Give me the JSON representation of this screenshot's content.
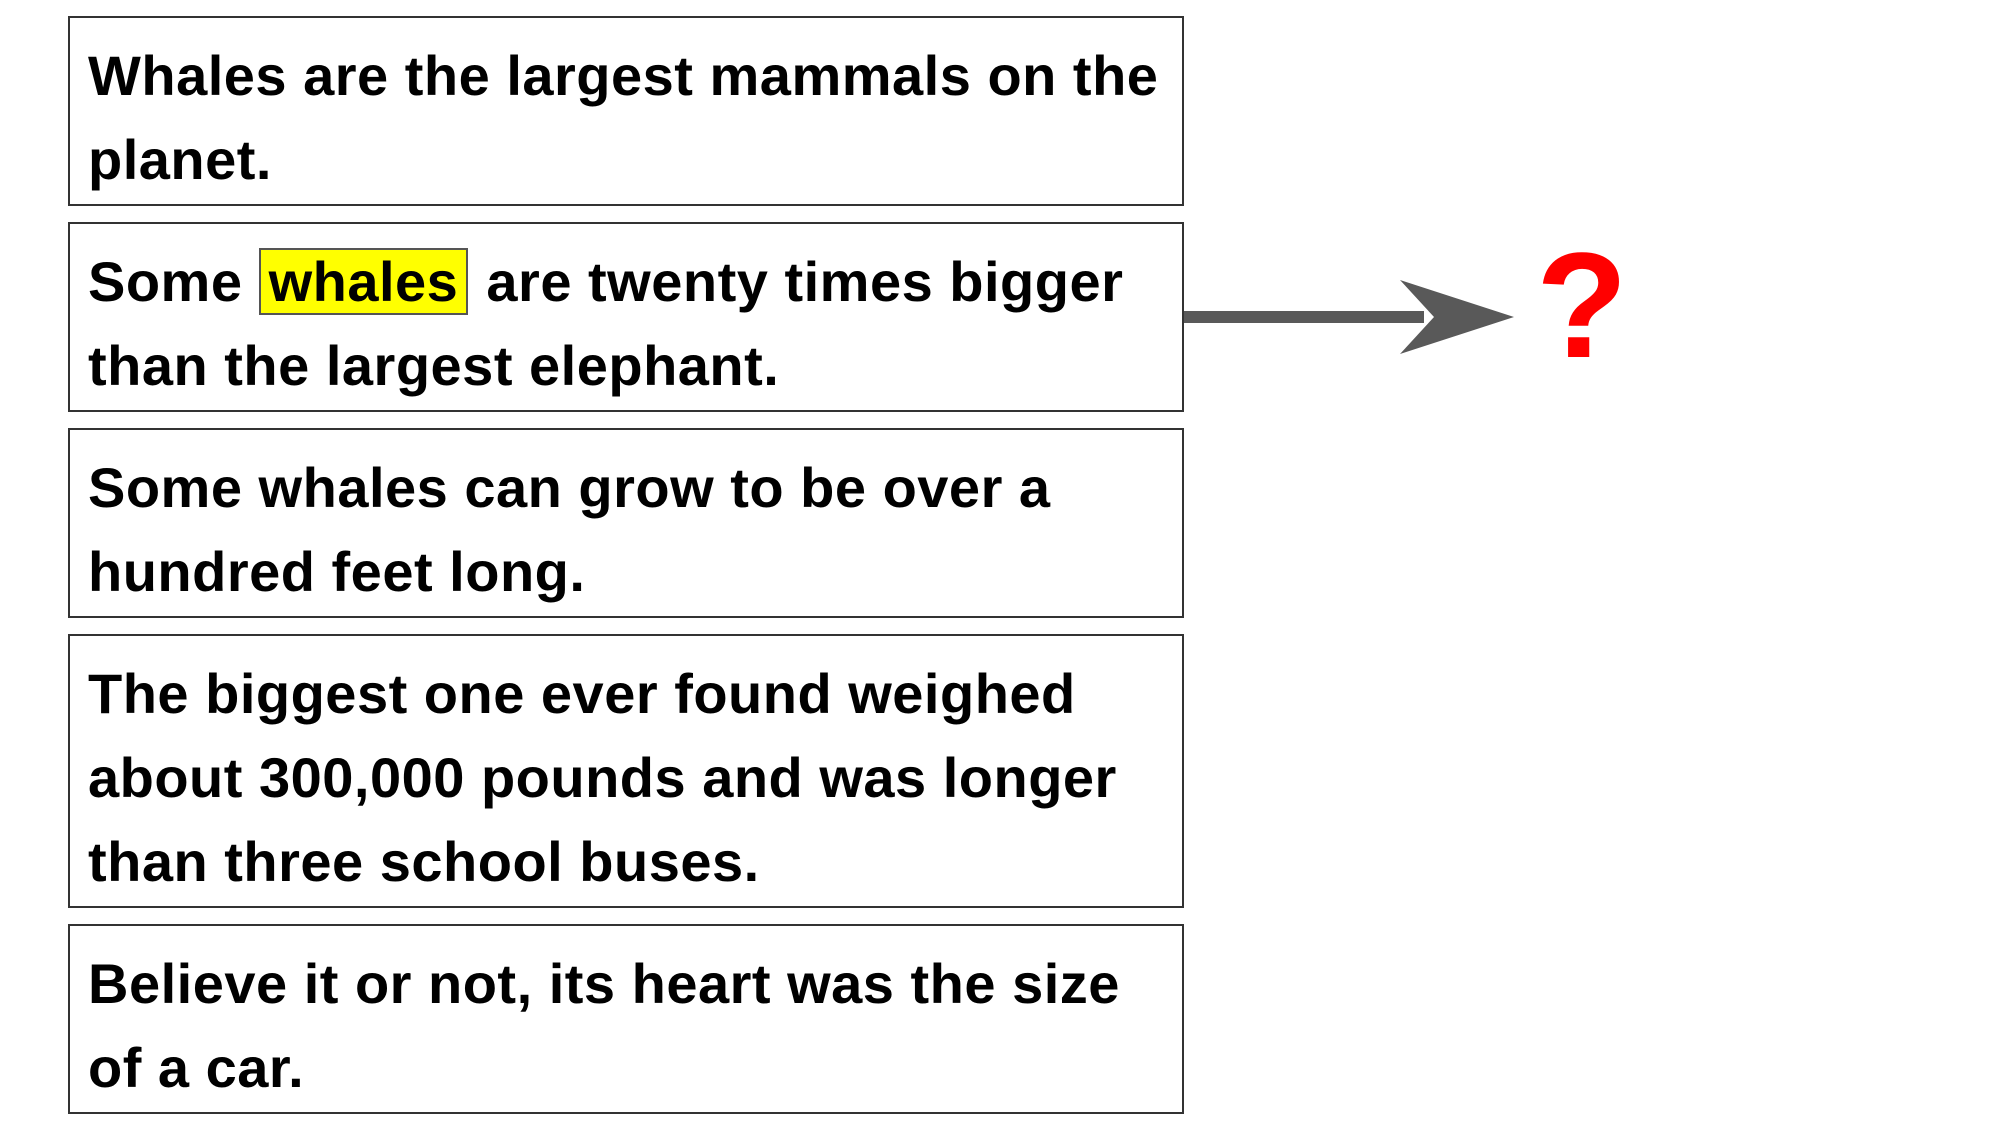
{
  "sentences": [
    {
      "text": "Whales are the largest mammals on the planet."
    },
    {
      "before": "Some",
      "highlight": "whales",
      "after": "are twenty times bigger than the largest elephant."
    },
    {
      "text": "Some whales can grow to be over a hundred feet long."
    },
    {
      "text": "The biggest one ever found weighed about 300,000 pounds and was longer than three school buses."
    },
    {
      "text": "Believe it or not, its heart was the size of a car."
    }
  ],
  "output": {
    "symbol": "?",
    "color": "#ff0000"
  },
  "colors": {
    "highlight": "#ffff00",
    "arrow": "#595959",
    "box_border": "#333333"
  },
  "icons": {
    "arrow": "right-arrow-icon"
  }
}
